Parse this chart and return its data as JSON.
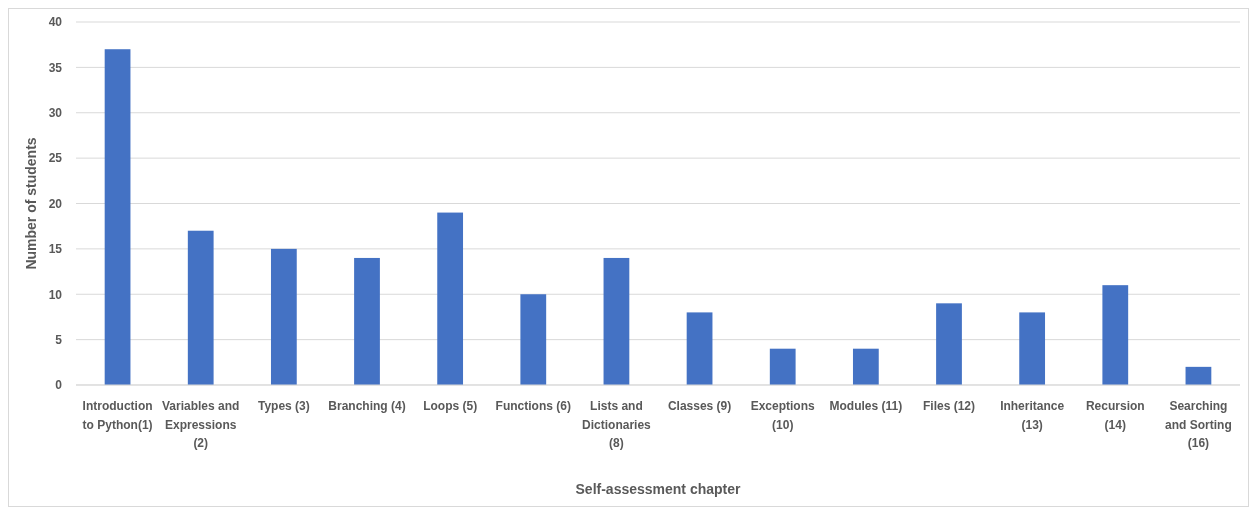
{
  "chart_data": {
    "type": "bar",
    "xlabel": "Self-assessment chapter",
    "ylabel": "Number of students",
    "categories": [
      "Introduction to Python(1)",
      "Variables and Expressions (2)",
      "Types (3)",
      "Branching (4)",
      "Loops (5)",
      "Functions (6)",
      "Lists and Dictionaries (8)",
      "Classes (9)",
      "Exceptions (10)",
      "Modules (11)",
      "Files (12)",
      "Inheritance (13)",
      "Recursion (14)",
      "Searching and Sorting (16)"
    ],
    "values": [
      37,
      17,
      15,
      14,
      19,
      10,
      14,
      8,
      4,
      4,
      9,
      8,
      11,
      2
    ],
    "color": "#4472c4",
    "ylim": [
      0,
      40
    ],
    "yticks": [
      0,
      5,
      10,
      15,
      20,
      25,
      30,
      35,
      40
    ],
    "grid": "y"
  }
}
